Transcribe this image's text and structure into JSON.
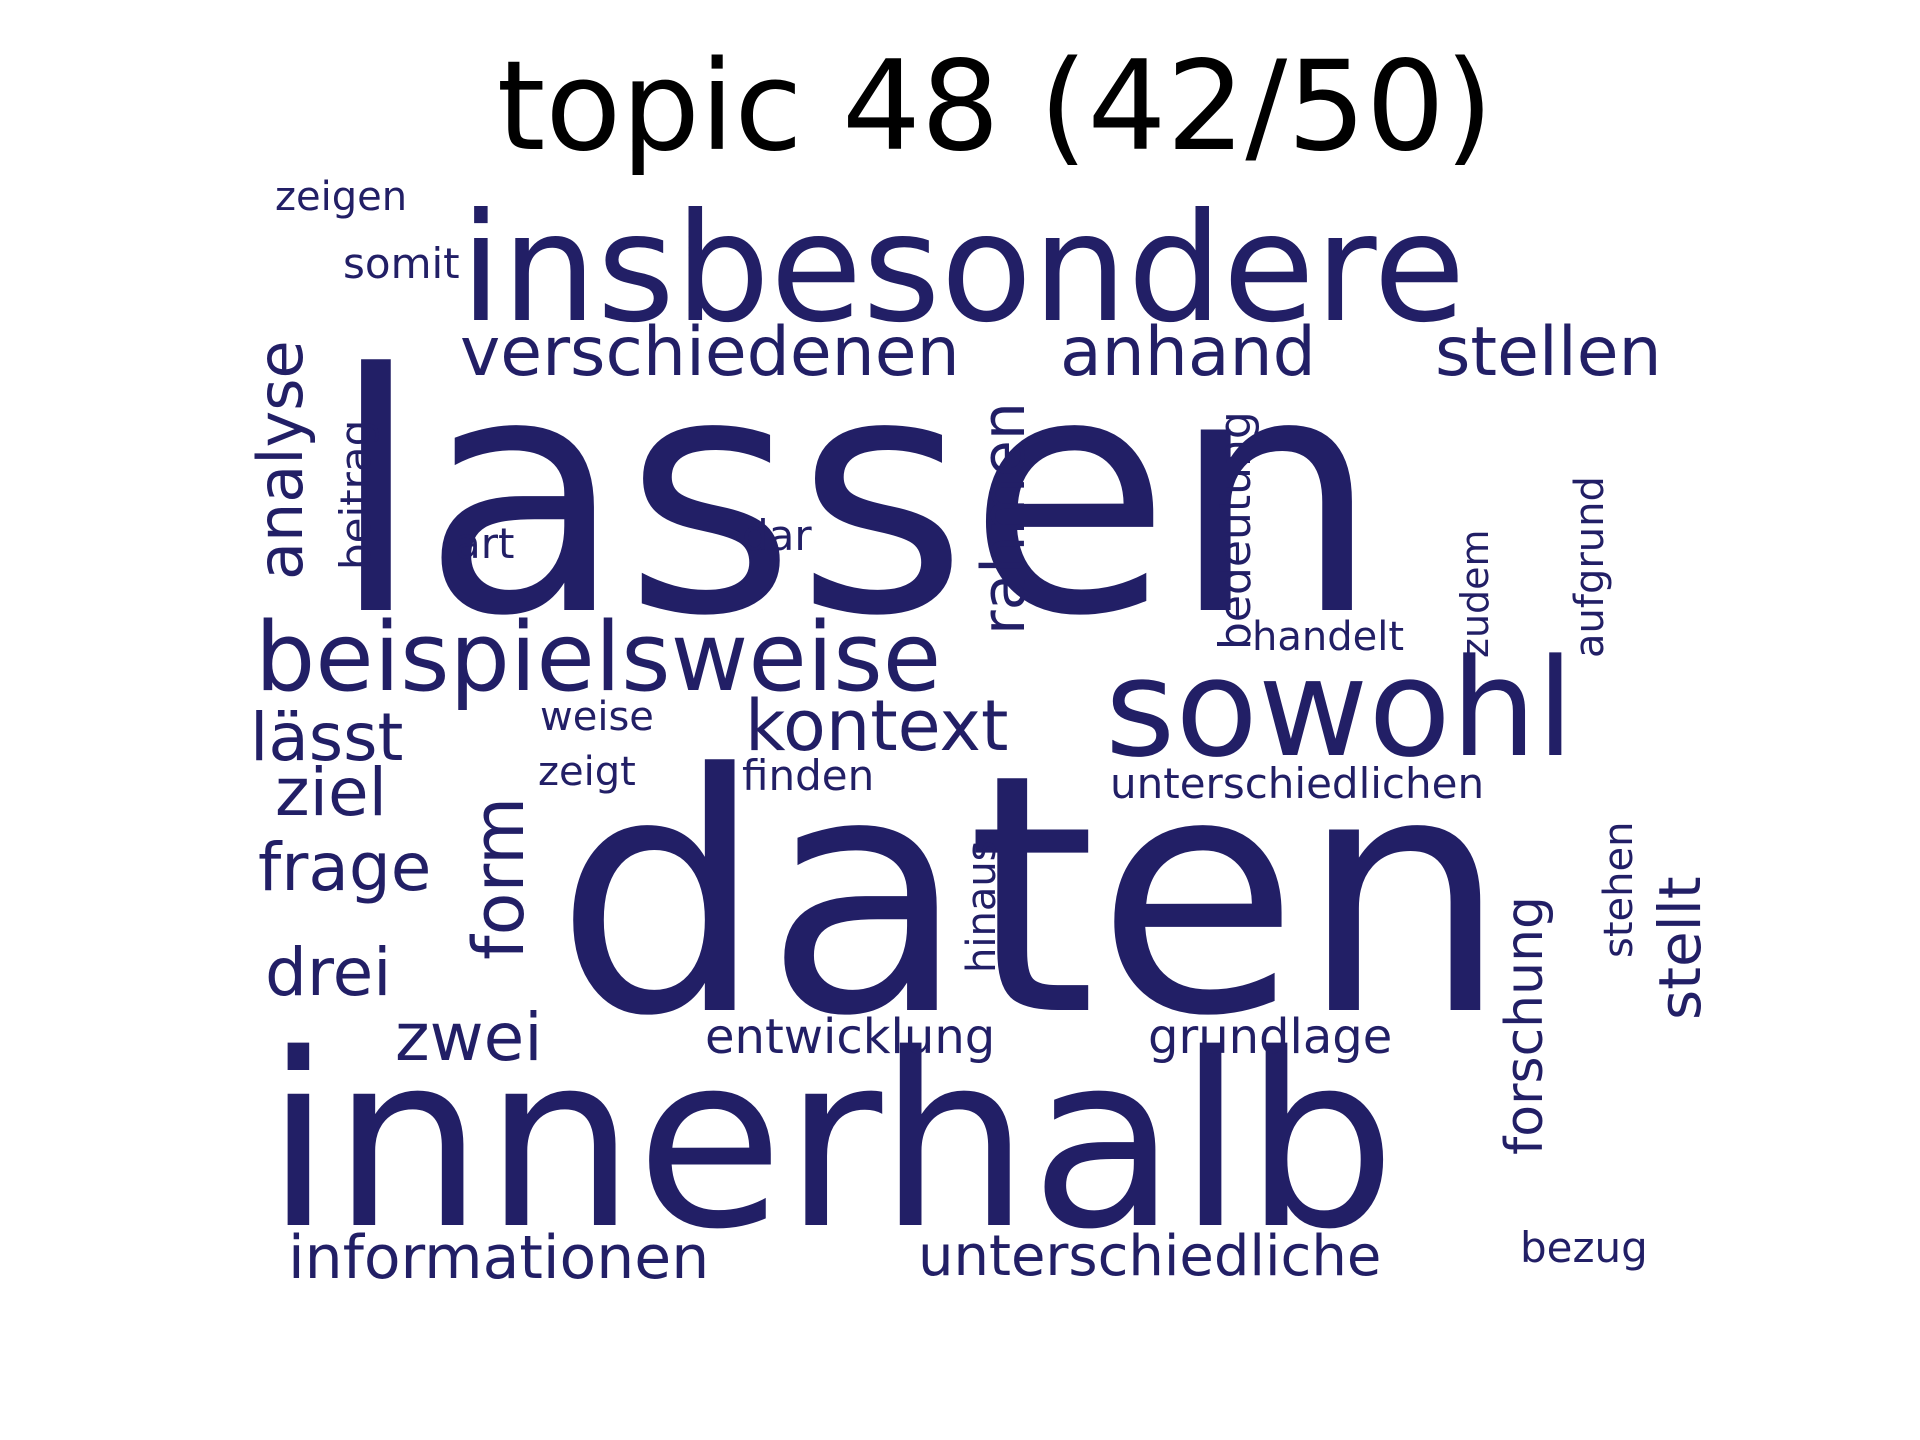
{
  "title": "topic 48 (42/50)",
  "colors": {
    "word": "#221F66",
    "title": "#000000",
    "background": "#FFFFFF"
  },
  "words": [
    {
      "text": "lassen",
      "orientation": "horizontal"
    },
    {
      "text": "daten",
      "orientation": "horizontal"
    },
    {
      "text": "innerhalb",
      "orientation": "horizontal"
    },
    {
      "text": "insbesondere",
      "orientation": "horizontal"
    },
    {
      "text": "sowohl",
      "orientation": "horizontal"
    },
    {
      "text": "beispielsweise",
      "orientation": "horizontal"
    },
    {
      "text": "verschiedenen",
      "orientation": "horizontal"
    },
    {
      "text": "anhand",
      "orientation": "horizontal"
    },
    {
      "text": "stellen",
      "orientation": "horizontal"
    },
    {
      "text": "kontext",
      "orientation": "horizontal"
    },
    {
      "text": "lässt",
      "orientation": "horizontal"
    },
    {
      "text": "ziel",
      "orientation": "horizontal"
    },
    {
      "text": "frage",
      "orientation": "horizontal"
    },
    {
      "text": "drei",
      "orientation": "horizontal"
    },
    {
      "text": "zwei",
      "orientation": "horizontal"
    },
    {
      "text": "informationen",
      "orientation": "horizontal"
    },
    {
      "text": "unterschiedliche",
      "orientation": "horizontal"
    },
    {
      "text": "entwicklung",
      "orientation": "horizontal"
    },
    {
      "text": "grundlage",
      "orientation": "horizontal"
    },
    {
      "text": "unterschiedlichen",
      "orientation": "horizontal"
    },
    {
      "text": "finden",
      "orientation": "horizontal"
    },
    {
      "text": "zeigt",
      "orientation": "horizontal"
    },
    {
      "text": "weise",
      "orientation": "horizontal"
    },
    {
      "text": "handelt",
      "orientation": "horizontal"
    },
    {
      "text": "art",
      "orientation": "horizontal"
    },
    {
      "text": "dar",
      "orientation": "horizontal"
    },
    {
      "text": "zeigen",
      "orientation": "horizontal"
    },
    {
      "text": "somit",
      "orientation": "horizontal"
    },
    {
      "text": "bezug",
      "orientation": "horizontal"
    },
    {
      "text": "analyse",
      "orientation": "vertical"
    },
    {
      "text": "beitrag",
      "orientation": "vertical"
    },
    {
      "text": "rahmen",
      "orientation": "vertical"
    },
    {
      "text": "form",
      "orientation": "vertical"
    },
    {
      "text": "bedeutung",
      "orientation": "vertical"
    },
    {
      "text": "zudem",
      "orientation": "vertical"
    },
    {
      "text": "aufgrund",
      "orientation": "vertical"
    },
    {
      "text": "stellt",
      "orientation": "vertical"
    },
    {
      "text": "stehen",
      "orientation": "vertical"
    },
    {
      "text": "hinaus",
      "orientation": "vertical"
    },
    {
      "text": "forschung",
      "orientation": "vertical"
    }
  ]
}
